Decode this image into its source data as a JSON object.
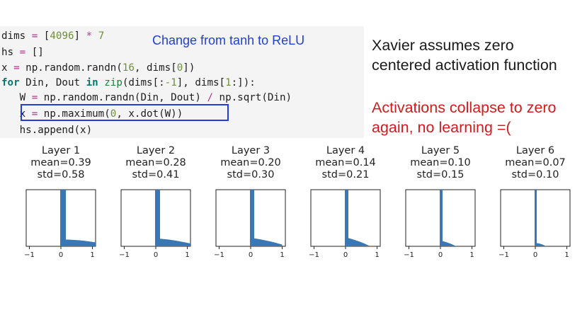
{
  "code": {
    "lines": [
      [
        {
          "t": "dims "
        },
        {
          "t": "=",
          "c": "op"
        },
        {
          "t": " ["
        },
        {
          "t": "4096",
          "c": "num"
        },
        {
          "t": "] "
        },
        {
          "t": "*",
          "c": "op"
        },
        {
          "t": " "
        },
        {
          "t": "7",
          "c": "num"
        }
      ],
      [
        {
          "t": "hs "
        },
        {
          "t": "=",
          "c": "op"
        },
        {
          "t": " []"
        }
      ],
      [
        {
          "t": "x "
        },
        {
          "t": "=",
          "c": "op"
        },
        {
          "t": " np.random.randn("
        },
        {
          "t": "16",
          "c": "num"
        },
        {
          "t": ", dims["
        },
        {
          "t": "0",
          "c": "num"
        },
        {
          "t": "])"
        }
      ],
      [
        {
          "t": "for",
          "c": "kw"
        },
        {
          "t": " Din, Dout "
        },
        {
          "t": "in",
          "c": "kw"
        },
        {
          "t": " "
        },
        {
          "t": "zip",
          "c": "fn"
        },
        {
          "t": "(dims[:"
        },
        {
          "t": "-1",
          "c": "num"
        },
        {
          "t": "], dims["
        },
        {
          "t": "1",
          "c": "num"
        },
        {
          "t": ":]):"
        }
      ],
      [
        {
          "t": "   W "
        },
        {
          "t": "=",
          "c": "op"
        },
        {
          "t": " np.random.randn(Din, Dout) "
        },
        {
          "t": "/",
          "c": "op"
        },
        {
          "t": " np.sqrt(Din)"
        }
      ],
      [
        {
          "t": "   x "
        },
        {
          "t": "=",
          "c": "op"
        },
        {
          "t": " np.maximum("
        },
        {
          "t": "0",
          "c": "num"
        },
        {
          "t": ", x.dot(W))"
        }
      ],
      [
        {
          "t": "   hs.append(x)"
        }
      ]
    ]
  },
  "annotation_blue": "Change from tanh to ReLU",
  "side_text": {
    "line1": "Xavier assumes zero",
    "line2": "centered activation function",
    "red_line1": "Activations collapse to zero",
    "red_line2": "again, no learning =("
  },
  "colors": {
    "bar": "#3a78b5",
    "highlight": "#1f3fd6",
    "red": "#d01c1c"
  },
  "chart_data": {
    "type": "bar",
    "x_ticks": [
      "−1",
      "0",
      "1"
    ],
    "xlim": [
      -1.1,
      1.1
    ],
    "panels": [
      {
        "title": "Layer 1",
        "mean": "mean=0.39",
        "std": "std=0.58",
        "spike": 1.0,
        "tail_start": 0.12,
        "tail_end": 0.07,
        "tail_x": 1.1
      },
      {
        "title": "Layer 2",
        "mean": "mean=0.28",
        "std": "std=0.41",
        "spike": 1.0,
        "tail_start": 0.14,
        "tail_end": 0.05,
        "tail_x": 1.1
      },
      {
        "title": "Layer 3",
        "mean": "mean=0.20",
        "std": "std=0.30",
        "spike": 1.0,
        "tail_start": 0.15,
        "tail_end": 0.03,
        "tail_x": 1.0
      },
      {
        "title": "Layer 4",
        "mean": "mean=0.14",
        "std": "std=0.21",
        "spike": 1.0,
        "tail_start": 0.16,
        "tail_end": 0.01,
        "tail_x": 0.75
      },
      {
        "title": "Layer 5",
        "mean": "mean=0.10",
        "std": "std=0.15",
        "spike": 1.0,
        "tail_start": 0.1,
        "tail_end": 0.0,
        "tail_x": 0.5
      },
      {
        "title": "Layer 6",
        "mean": "mean=0.07",
        "std": "std=0.10",
        "spike": 1.0,
        "tail_start": 0.06,
        "tail_end": 0.0,
        "tail_x": 0.35
      }
    ]
  }
}
